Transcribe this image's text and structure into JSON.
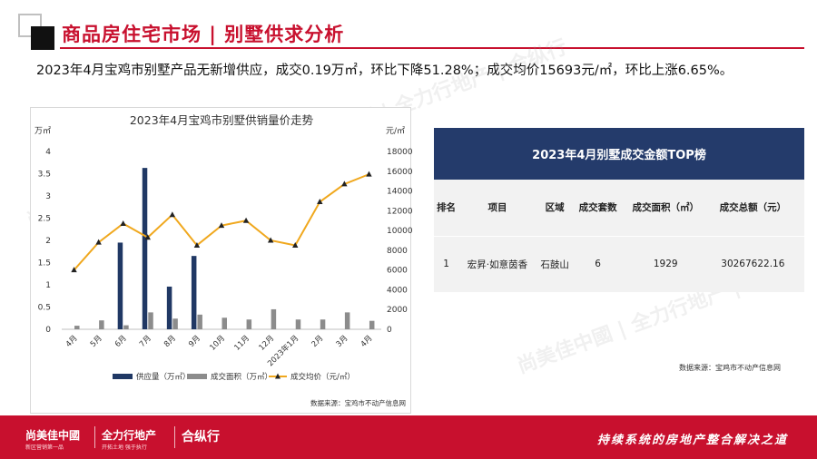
{
  "header": {
    "title": "商品房住宅市场 | 别墅供求分析"
  },
  "summary": "2023年4月宝鸡市别墅产品无新增供应，成交0.19万㎡，环比下降51.28%；成交均价15693元/㎡，环比上涨6.65%。",
  "chart_data": {
    "type": "bar",
    "title": "2023年4月宝鸡市别墅供销量价走势",
    "left_unit": "万㎡",
    "right_unit": "元/㎡",
    "categories": [
      "4月",
      "5月",
      "6月",
      "7月",
      "8月",
      "9月",
      "10月",
      "11月",
      "12月",
      "2023年1月",
      "2月",
      "3月",
      "4月"
    ],
    "y_left": {
      "min": 0,
      "max": 4,
      "step": 0.5,
      "ticks": [
        "0",
        "0.5",
        "1",
        "1.5",
        "2",
        "2.5",
        "3",
        "3.5",
        "4"
      ]
    },
    "y_right": {
      "min": 0,
      "max": 18000,
      "step": 2000,
      "ticks": [
        "0",
        "2000",
        "4000",
        "6000",
        "8000",
        "10000",
        "12000",
        "14000",
        "16000",
        "18000"
      ]
    },
    "series": [
      {
        "name": "供应量（万㎡）",
        "type": "bar",
        "axis": "left",
        "color": "#203864",
        "values": [
          0,
          0,
          1.95,
          3.63,
          0.96,
          1.65,
          0,
          0,
          0,
          0,
          0,
          0,
          0
        ]
      },
      {
        "name": "成交面积（万㎡）",
        "type": "bar",
        "axis": "left",
        "color": "#8c8c8c",
        "values": [
          0.08,
          0.2,
          0.09,
          0.38,
          0.24,
          0.33,
          0.26,
          0.22,
          0.45,
          0.22,
          0.22,
          0.38,
          0.19
        ]
      },
      {
        "name": "成交均价（元/㎡）",
        "type": "line",
        "axis": "right",
        "color": "#f0a81e",
        "values": [
          6000,
          8800,
          10700,
          9300,
          11600,
          8500,
          10500,
          11000,
          9000,
          8500,
          12900,
          14700,
          15693
        ]
      }
    ],
    "source": "数据来源：宝鸡市不动产信息网"
  },
  "table": {
    "title": "2023年4月别墅成交金额TOP榜",
    "headers": [
      "排名",
      "项目",
      "区域",
      "成交套数",
      "成交面积（㎡）",
      "成交总额（元）"
    ],
    "rows": [
      [
        "1",
        "宏昇·如意茵香",
        "石鼓山",
        "6",
        "1929",
        "30267622.16"
      ]
    ],
    "source": "数据来源：宝鸡市不动产信息网"
  },
  "footer": {
    "logo1": "尚美佳中國",
    "logo1_sub": "新区营销第一品",
    "logo2": "全力行地产",
    "logo2_sub": "开拓土地 强于执行",
    "logo3": "合纵行",
    "slogan": "持续系统的房地产整合解决之道"
  },
  "watermark": "尚美佳中國 | 全力行地产 | 合纵行",
  "colors": {
    "accent": "#c8102e",
    "table_header": "#243b6b"
  }
}
